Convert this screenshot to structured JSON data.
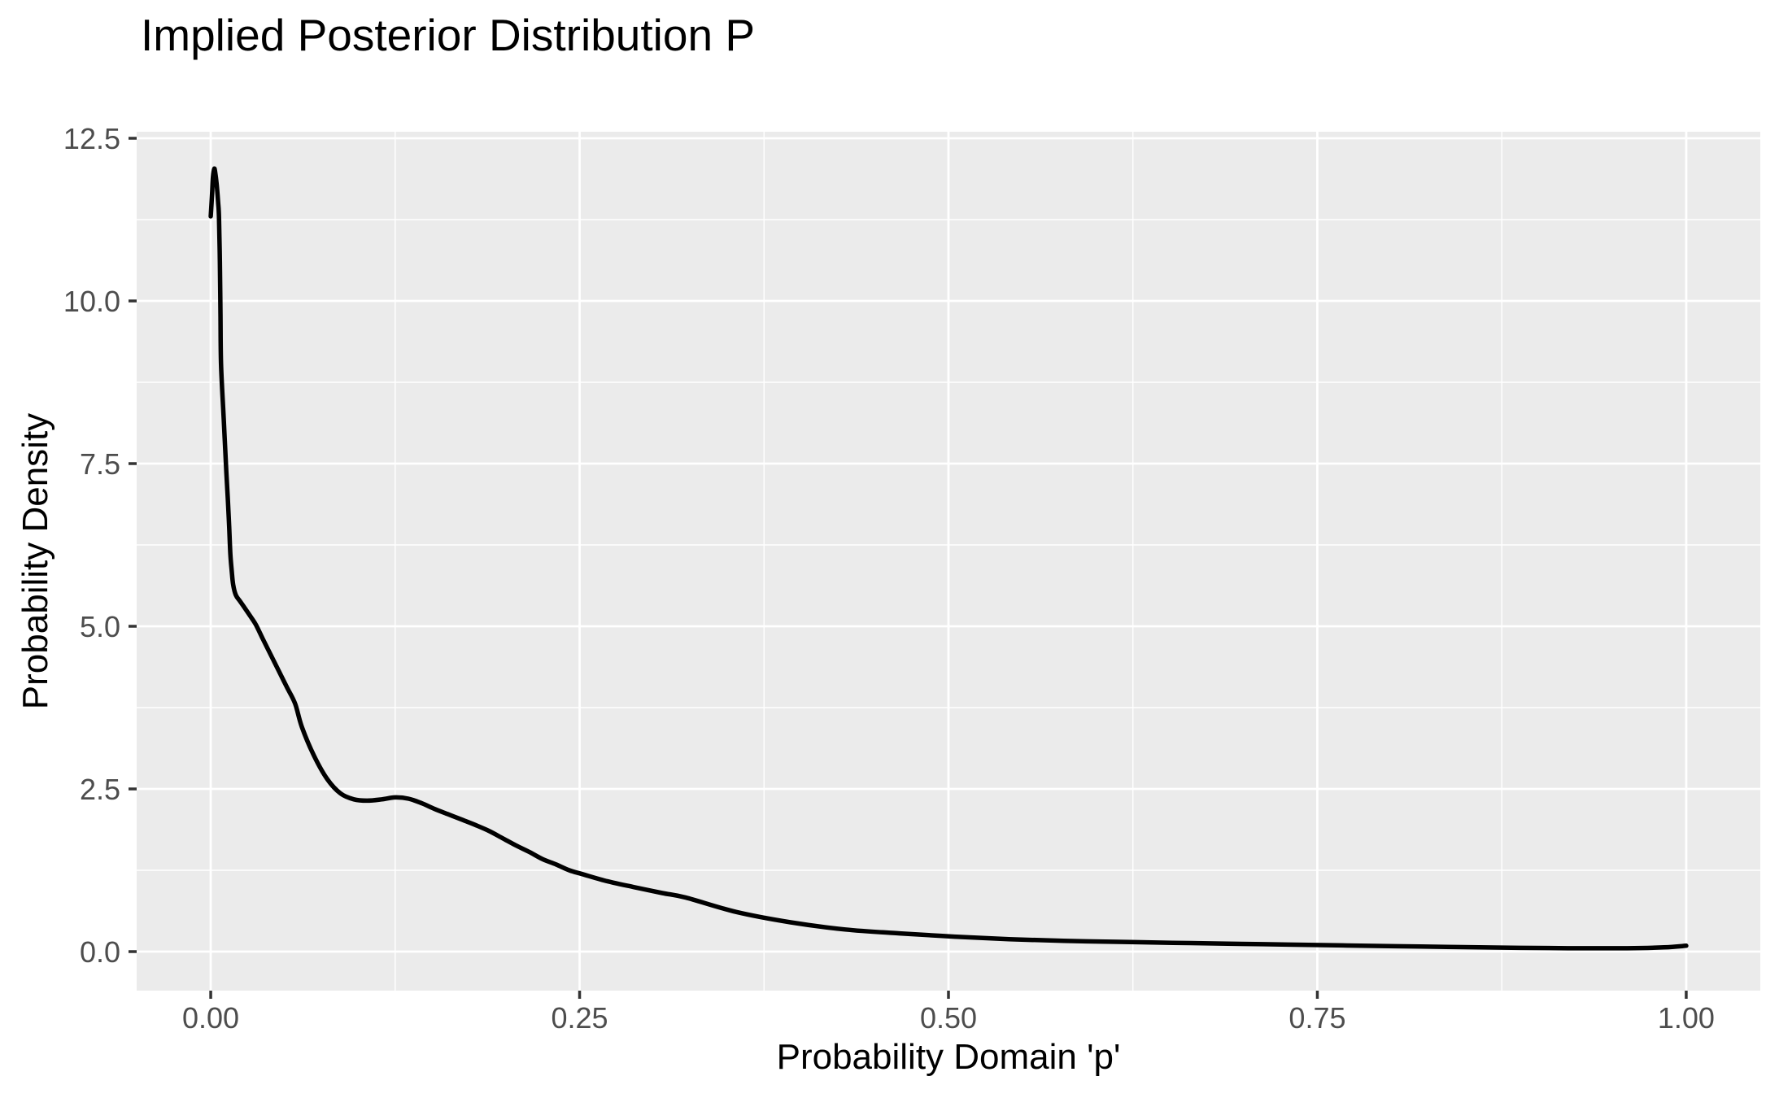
{
  "figure": {
    "title": "Implied Posterior Distribution P",
    "x_axis_label": "Probability Domain 'p'",
    "y_axis_label": "Probability Density"
  },
  "colors": {
    "background": "#FFFFFF",
    "panel_background": "#EBEBEB",
    "gridline": "#FFFFFF",
    "curve": "#000000",
    "tick_mark": "#333333",
    "tick_label": "#4D4D4D",
    "text": "#000000"
  },
  "chart_data": {
    "type": "line",
    "title": "Implied Posterior Distribution P",
    "xlabel": "Probability Domain 'p'",
    "ylabel": "Probability Density",
    "xlim": [
      -0.0502,
      1.0502
    ],
    "ylim": [
      -0.6,
      12.6
    ],
    "x_ticks": [
      0,
      0.25,
      0.5,
      0.75,
      1
    ],
    "x_tick_labels": [
      "0.00",
      "0.25",
      "0.50",
      "0.75",
      "1.00"
    ],
    "x_minor_ticks": [
      0.125,
      0.375,
      0.625,
      0.875
    ],
    "y_ticks": [
      0,
      2.5,
      5,
      7.5,
      10,
      12.5
    ],
    "y_tick_labels": [
      "0.0",
      "2.5",
      "5.0",
      "7.5",
      "10.0",
      "12.5"
    ],
    "y_minor_ticks": [
      1.25,
      3.75,
      6.25,
      8.75,
      11.25
    ],
    "grid": "on",
    "legend": "none",
    "series": [
      {
        "name": "posterior_density",
        "color": "#000000",
        "points": [
          [
            0.0,
            11.3
          ],
          [
            0.0006,
            11.52
          ],
          [
            0.001,
            11.68
          ],
          [
            0.0015,
            11.9
          ],
          [
            0.0024,
            12.03
          ],
          [
            0.003,
            11.98
          ],
          [
            0.004,
            11.8
          ],
          [
            0.005,
            11.52
          ],
          [
            0.0056,
            11.29
          ],
          [
            0.0062,
            10.6
          ],
          [
            0.0066,
            9.8
          ],
          [
            0.007,
            9.02
          ],
          [
            0.0088,
            8.19
          ],
          [
            0.0106,
            7.36
          ],
          [
            0.0116,
            6.95
          ],
          [
            0.0125,
            6.53
          ],
          [
            0.0133,
            6.11
          ],
          [
            0.0142,
            5.86
          ],
          [
            0.0152,
            5.64
          ],
          [
            0.017,
            5.48
          ],
          [
            0.0197,
            5.39
          ],
          [
            0.0234,
            5.27
          ],
          [
            0.027,
            5.15
          ],
          [
            0.0307,
            5.02
          ],
          [
            0.0352,
            4.81
          ],
          [
            0.0407,
            4.56
          ],
          [
            0.0462,
            4.31
          ],
          [
            0.0517,
            4.06
          ],
          [
            0.0572,
            3.81
          ],
          [
            0.0618,
            3.45
          ],
          [
            0.07,
            3.01
          ],
          [
            0.079,
            2.65
          ],
          [
            0.088,
            2.43
          ],
          [
            0.097,
            2.34
          ],
          [
            0.106,
            2.32
          ],
          [
            0.116,
            2.34
          ],
          [
            0.125,
            2.37
          ],
          [
            0.134,
            2.35
          ],
          [
            0.143,
            2.28
          ],
          [
            0.152,
            2.19
          ],
          [
            0.161,
            2.11
          ],
          [
            0.17,
            2.03
          ],
          [
            0.18,
            1.94
          ],
          [
            0.189,
            1.85
          ],
          [
            0.198,
            1.74
          ],
          [
            0.207,
            1.63
          ],
          [
            0.216,
            1.53
          ],
          [
            0.225,
            1.42
          ],
          [
            0.234,
            1.34
          ],
          [
            0.243,
            1.25
          ],
          [
            0.252,
            1.19
          ],
          [
            0.269,
            1.08
          ],
          [
            0.287,
            0.99
          ],
          [
            0.306,
            0.9
          ],
          [
            0.322,
            0.83
          ],
          [
            0.356,
            0.61
          ],
          [
            0.393,
            0.45
          ],
          [
            0.43,
            0.34
          ],
          [
            0.467,
            0.28
          ],
          [
            0.504,
            0.23
          ],
          [
            0.541,
            0.19
          ],
          [
            0.578,
            0.165
          ],
          [
            0.615,
            0.15
          ],
          [
            0.652,
            0.135
          ],
          [
            0.689,
            0.122
          ],
          [
            0.73,
            0.108
          ],
          [
            0.77,
            0.094
          ],
          [
            0.82,
            0.078
          ],
          [
            0.87,
            0.062
          ],
          [
            0.92,
            0.052
          ],
          [
            0.96,
            0.052
          ],
          [
            0.985,
            0.065
          ],
          [
            1.0,
            0.09
          ]
        ]
      }
    ]
  }
}
